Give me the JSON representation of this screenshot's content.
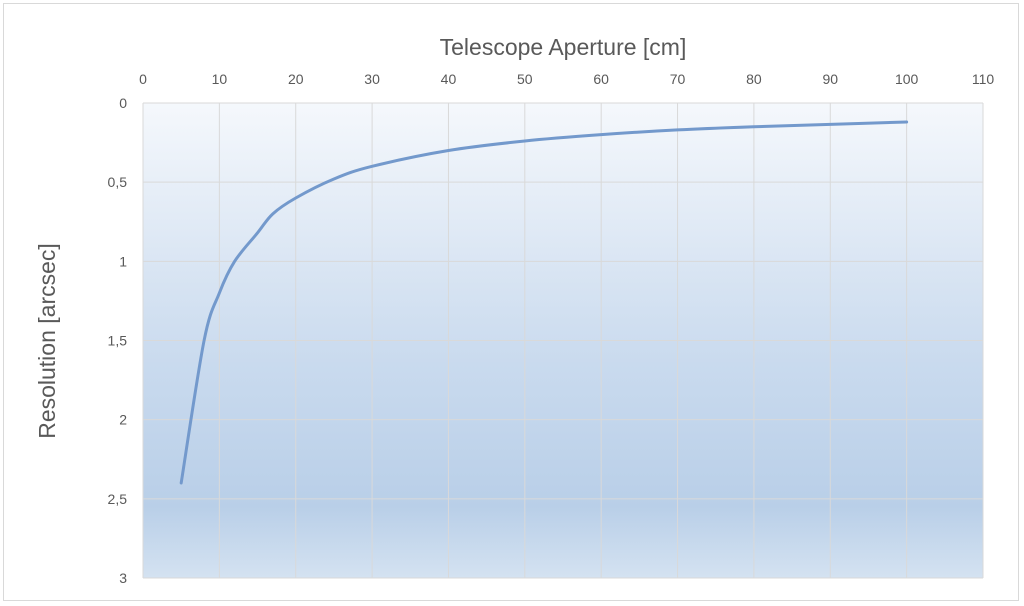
{
  "chart_data": {
    "type": "line",
    "title": "",
    "xlabel": "Telescope Aperture [cm]",
    "ylabel": "Resolution [arcsec]",
    "xlim": [
      0,
      110
    ],
    "ylim": [
      0,
      3
    ],
    "y_inverted": true,
    "x_axis_position": "top",
    "x_ticks": [
      "0",
      "10",
      "20",
      "30",
      "40",
      "50",
      "60",
      "70",
      "80",
      "90",
      "100",
      "110"
    ],
    "y_ticks": [
      "0",
      "0,5",
      "1",
      "1,5",
      "2",
      "2,5",
      "3"
    ],
    "grid": true,
    "legend": "none",
    "line_color": "#7399cc",
    "background_gradient": [
      "#f5f8fc",
      "#b9cfe8"
    ],
    "series": [
      {
        "x": [
          5,
          8,
          10,
          12,
          15,
          17,
          20,
          25,
          30,
          40,
          50,
          60,
          70,
          80,
          90,
          100
        ],
        "values": [
          2.4,
          1.5,
          1.2,
          1.0,
          0.82,
          0.7,
          0.6,
          0.48,
          0.4,
          0.3,
          0.24,
          0.2,
          0.17,
          0.15,
          0.135,
          0.12
        ]
      }
    ]
  }
}
